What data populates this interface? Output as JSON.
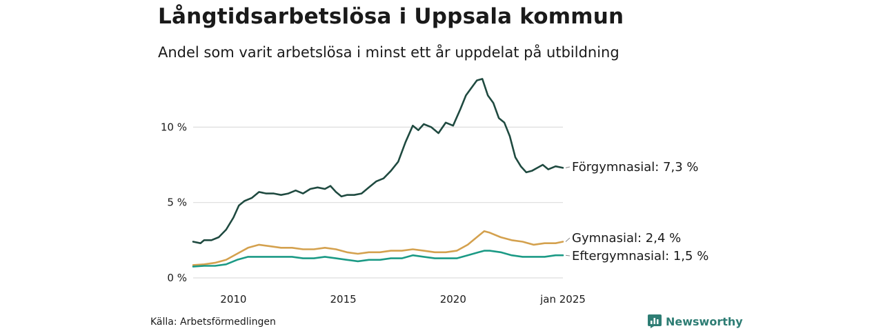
{
  "title": "Långtidsarbetslösa i Uppsala kommun",
  "subtitle": "Andel som varit arbetslösa i minst ett år uppdelat på utbildning",
  "source": "Källa: Arbetsförmedlingen",
  "brand": "Newsworthy",
  "colors": {
    "forgymnasial": "#1f4a40",
    "gymnasial": "#d4a14e",
    "eftergymnasial": "#1b9a85",
    "grid": "#dddddd",
    "brand": "#2e7d74"
  },
  "chart_data": {
    "type": "line",
    "title": "Långtidsarbetslösa i Uppsala kommun",
    "subtitle": "Andel som varit arbetslösa i minst ett år uppdelat på utbildning",
    "xlabel": "",
    "ylabel": "",
    "xlim": [
      "2008-03",
      "2025-01"
    ],
    "ylim": [
      0,
      13.4
    ],
    "grid": true,
    "legend": "direct labels at line ends",
    "x_ticks": [
      {
        "x": "2010-01",
        "label": "2010"
      },
      {
        "x": "2015-01",
        "label": "2015"
      },
      {
        "x": "2020-01",
        "label": "2020"
      },
      {
        "x": "2025-01",
        "label": "jan 2025"
      }
    ],
    "y_ticks": [
      {
        "value": 0,
        "label": "0 %"
      },
      {
        "value": 5,
        "label": "5 %"
      },
      {
        "value": 10,
        "label": "10 %"
      }
    ],
    "series": [
      {
        "name": "Förgymnasial",
        "label": "Förgymnasial: 7,3 %",
        "color": "#1f4a40",
        "points": [
          [
            "2008-03",
            2.4
          ],
          [
            "2008-07",
            2.3
          ],
          [
            "2008-09",
            2.5
          ],
          [
            "2009-01",
            2.5
          ],
          [
            "2009-05",
            2.7
          ],
          [
            "2009-09",
            3.2
          ],
          [
            "2010-01",
            4.0
          ],
          [
            "2010-04",
            4.8
          ],
          [
            "2010-07",
            5.1
          ],
          [
            "2010-11",
            5.3
          ],
          [
            "2011-03",
            5.7
          ],
          [
            "2011-07",
            5.6
          ],
          [
            "2011-11",
            5.6
          ],
          [
            "2012-03",
            5.5
          ],
          [
            "2012-07",
            5.6
          ],
          [
            "2012-11",
            5.8
          ],
          [
            "2013-03",
            5.6
          ],
          [
            "2013-07",
            5.9
          ],
          [
            "2013-11",
            6.0
          ],
          [
            "2014-03",
            5.9
          ],
          [
            "2014-06",
            6.1
          ],
          [
            "2014-09",
            5.7
          ],
          [
            "2014-12",
            5.4
          ],
          [
            "2015-03",
            5.5
          ],
          [
            "2015-07",
            5.5
          ],
          [
            "2015-11",
            5.6
          ],
          [
            "2016-03",
            6.0
          ],
          [
            "2016-07",
            6.4
          ],
          [
            "2016-11",
            6.6
          ],
          [
            "2017-03",
            7.1
          ],
          [
            "2017-07",
            7.7
          ],
          [
            "2017-11",
            9.0
          ],
          [
            "2018-03",
            10.1
          ],
          [
            "2018-06",
            9.8
          ],
          [
            "2018-09",
            10.2
          ],
          [
            "2019-01",
            10.0
          ],
          [
            "2019-05",
            9.6
          ],
          [
            "2019-09",
            10.3
          ],
          [
            "2020-01",
            10.1
          ],
          [
            "2020-05",
            11.2
          ],
          [
            "2020-08",
            12.1
          ],
          [
            "2020-11",
            12.6
          ],
          [
            "2021-02",
            13.1
          ],
          [
            "2021-05",
            13.2
          ],
          [
            "2021-08",
            12.1
          ],
          [
            "2021-11",
            11.6
          ],
          [
            "2022-02",
            10.6
          ],
          [
            "2022-05",
            10.3
          ],
          [
            "2022-08",
            9.4
          ],
          [
            "2022-11",
            8.0
          ],
          [
            "2023-02",
            7.4
          ],
          [
            "2023-05",
            7.0
          ],
          [
            "2023-08",
            7.1
          ],
          [
            "2023-11",
            7.3
          ],
          [
            "2024-02",
            7.5
          ],
          [
            "2024-05",
            7.2
          ],
          [
            "2024-09",
            7.4
          ],
          [
            "2025-01",
            7.3
          ]
        ]
      },
      {
        "name": "Gymnasial",
        "label": "Gymnasial: 2,4 %",
        "color": "#d4a14e",
        "points": [
          [
            "2008-03",
            0.85
          ],
          [
            "2008-09",
            0.9
          ],
          [
            "2009-03",
            1.0
          ],
          [
            "2009-09",
            1.2
          ],
          [
            "2010-03",
            1.6
          ],
          [
            "2010-09",
            2.0
          ],
          [
            "2011-03",
            2.2
          ],
          [
            "2011-09",
            2.1
          ],
          [
            "2012-03",
            2.0
          ],
          [
            "2012-09",
            2.0
          ],
          [
            "2013-03",
            1.9
          ],
          [
            "2013-09",
            1.9
          ],
          [
            "2014-03",
            2.0
          ],
          [
            "2014-09",
            1.9
          ],
          [
            "2015-03",
            1.7
          ],
          [
            "2015-09",
            1.6
          ],
          [
            "2016-03",
            1.7
          ],
          [
            "2016-09",
            1.7
          ],
          [
            "2017-03",
            1.8
          ],
          [
            "2017-09",
            1.8
          ],
          [
            "2018-03",
            1.9
          ],
          [
            "2018-09",
            1.8
          ],
          [
            "2019-03",
            1.7
          ],
          [
            "2019-09",
            1.7
          ],
          [
            "2020-03",
            1.8
          ],
          [
            "2020-09",
            2.2
          ],
          [
            "2021-03",
            2.8
          ],
          [
            "2021-06",
            3.1
          ],
          [
            "2021-09",
            3.0
          ],
          [
            "2022-03",
            2.7
          ],
          [
            "2022-09",
            2.5
          ],
          [
            "2023-03",
            2.4
          ],
          [
            "2023-09",
            2.2
          ],
          [
            "2024-03",
            2.3
          ],
          [
            "2024-09",
            2.3
          ],
          [
            "2025-01",
            2.4
          ]
        ]
      },
      {
        "name": "Eftergymnasial",
        "label": "Eftergymnasial: 1,5 %",
        "color": "#1b9a85",
        "points": [
          [
            "2008-03",
            0.75
          ],
          [
            "2008-09",
            0.8
          ],
          [
            "2009-03",
            0.8
          ],
          [
            "2009-09",
            0.9
          ],
          [
            "2010-03",
            1.2
          ],
          [
            "2010-09",
            1.4
          ],
          [
            "2011-03",
            1.4
          ],
          [
            "2011-09",
            1.4
          ],
          [
            "2012-03",
            1.4
          ],
          [
            "2012-09",
            1.4
          ],
          [
            "2013-03",
            1.3
          ],
          [
            "2013-09",
            1.3
          ],
          [
            "2014-03",
            1.4
          ],
          [
            "2014-09",
            1.3
          ],
          [
            "2015-03",
            1.2
          ],
          [
            "2015-09",
            1.1
          ],
          [
            "2016-03",
            1.2
          ],
          [
            "2016-09",
            1.2
          ],
          [
            "2017-03",
            1.3
          ],
          [
            "2017-09",
            1.3
          ],
          [
            "2018-03",
            1.5
          ],
          [
            "2018-09",
            1.4
          ],
          [
            "2019-03",
            1.3
          ],
          [
            "2019-09",
            1.3
          ],
          [
            "2020-03",
            1.3
          ],
          [
            "2020-09",
            1.5
          ],
          [
            "2021-03",
            1.7
          ],
          [
            "2021-06",
            1.8
          ],
          [
            "2021-09",
            1.8
          ],
          [
            "2022-03",
            1.7
          ],
          [
            "2022-09",
            1.5
          ],
          [
            "2023-03",
            1.4
          ],
          [
            "2023-09",
            1.4
          ],
          [
            "2024-03",
            1.4
          ],
          [
            "2024-09",
            1.5
          ],
          [
            "2025-01",
            1.5
          ]
        ]
      }
    ]
  }
}
